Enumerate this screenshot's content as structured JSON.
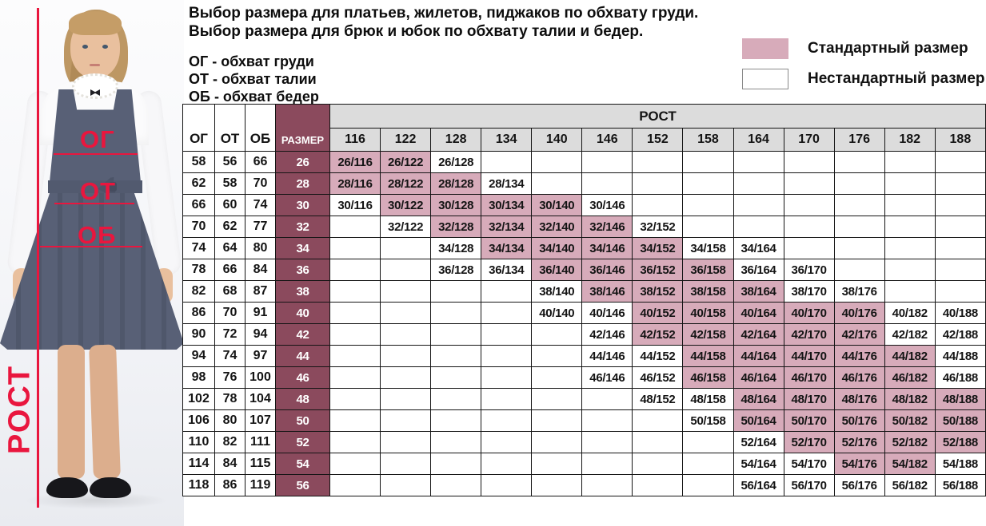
{
  "header": {
    "title_line1": "Выбор размера для платьев, жилетов, пиджаков по обхвату груди.",
    "title_line2": "Выбор размера для брюк и юбок по обхвату талии и бедер.",
    "abbreviations": [
      "ОГ - обхват груди",
      "ОТ - обхват талии",
      "ОБ - обхват бедер"
    ]
  },
  "legend": {
    "standard_label": "Стандартный размер",
    "nonstandard_label": "Нестандартный размер"
  },
  "photo": {
    "chest_label": "ОГ",
    "waist_label": "ОТ",
    "hips_label": "ОБ",
    "height_label": "РОСТ"
  },
  "colors": {
    "accent": "#e9163e",
    "pink": "#d7abba",
    "maroon": "#8b4a5d",
    "gray": "#dcdcdc"
  },
  "table": {
    "col_chest": "ОГ",
    "col_waist": "ОТ",
    "col_hips": "ОБ",
    "col_size": "РАЗМЕР",
    "col_height_group": "РОСТ",
    "heights": [
      "116",
      "122",
      "128",
      "134",
      "140",
      "146",
      "152",
      "158",
      "164",
      "170",
      "176",
      "182",
      "188"
    ],
    "rows": [
      {
        "og": "58",
        "ot": "56",
        "ob": "66",
        "size": "26",
        "cells": [
          {
            "t": "26/116",
            "s": 1
          },
          {
            "t": "26/122",
            "s": 1
          },
          {
            "t": "26/128",
            "s": 0
          },
          null,
          null,
          null,
          null,
          null,
          null,
          null,
          null,
          null,
          null
        ]
      },
      {
        "og": "62",
        "ot": "58",
        "ob": "70",
        "size": "28",
        "cells": [
          {
            "t": "28/116",
            "s": 1
          },
          {
            "t": "28/122",
            "s": 1
          },
          {
            "t": "28/128",
            "s": 1
          },
          {
            "t": "28/134",
            "s": 0
          },
          null,
          null,
          null,
          null,
          null,
          null,
          null,
          null,
          null
        ]
      },
      {
        "og": "66",
        "ot": "60",
        "ob": "74",
        "size": "30",
        "cells": [
          {
            "t": "30/116",
            "s": 0
          },
          {
            "t": "30/122",
            "s": 1
          },
          {
            "t": "30/128",
            "s": 1
          },
          {
            "t": "30/134",
            "s": 1
          },
          {
            "t": "30/140",
            "s": 1
          },
          {
            "t": "30/146",
            "s": 0
          },
          null,
          null,
          null,
          null,
          null,
          null,
          null
        ]
      },
      {
        "og": "70",
        "ot": "62",
        "ob": "77",
        "size": "32",
        "cells": [
          null,
          {
            "t": "32/122",
            "s": 0
          },
          {
            "t": "32/128",
            "s": 1
          },
          {
            "t": "32/134",
            "s": 1
          },
          {
            "t": "32/140",
            "s": 1
          },
          {
            "t": "32/146",
            "s": 1
          },
          {
            "t": "32/152",
            "s": 0
          },
          null,
          null,
          null,
          null,
          null,
          null
        ]
      },
      {
        "og": "74",
        "ot": "64",
        "ob": "80",
        "size": "34",
        "cells": [
          null,
          null,
          {
            "t": "34/128",
            "s": 0
          },
          {
            "t": "34/134",
            "s": 1
          },
          {
            "t": "34/140",
            "s": 1
          },
          {
            "t": "34/146",
            "s": 1
          },
          {
            "t": "34/152",
            "s": 1
          },
          {
            "t": "34/158",
            "s": 0
          },
          {
            "t": "34/164",
            "s": 0
          },
          null,
          null,
          null,
          null
        ]
      },
      {
        "og": "78",
        "ot": "66",
        "ob": "84",
        "size": "36",
        "cells": [
          null,
          null,
          {
            "t": "36/128",
            "s": 0
          },
          {
            "t": "36/134",
            "s": 0
          },
          {
            "t": "36/140",
            "s": 1
          },
          {
            "t": "36/146",
            "s": 1
          },
          {
            "t": "36/152",
            "s": 1
          },
          {
            "t": "36/158",
            "s": 1
          },
          {
            "t": "36/164",
            "s": 0
          },
          {
            "t": "36/170",
            "s": 0
          },
          null,
          null,
          null
        ]
      },
      {
        "og": "82",
        "ot": "68",
        "ob": "87",
        "size": "38",
        "cells": [
          null,
          null,
          null,
          null,
          {
            "t": "38/140",
            "s": 0
          },
          {
            "t": "38/146",
            "s": 1
          },
          {
            "t": "38/152",
            "s": 1
          },
          {
            "t": "38/158",
            "s": 1
          },
          {
            "t": "38/164",
            "s": 1
          },
          {
            "t": "38/170",
            "s": 0
          },
          {
            "t": "38/176",
            "s": 0
          },
          null,
          null
        ]
      },
      {
        "og": "86",
        "ot": "70",
        "ob": "91",
        "size": "40",
        "cells": [
          null,
          null,
          null,
          null,
          {
            "t": "40/140",
            "s": 0
          },
          {
            "t": "40/146",
            "s": 0
          },
          {
            "t": "40/152",
            "s": 1
          },
          {
            "t": "40/158",
            "s": 1
          },
          {
            "t": "40/164",
            "s": 1
          },
          {
            "t": "40/170",
            "s": 1
          },
          {
            "t": "40/176",
            "s": 1
          },
          {
            "t": "40/182",
            "s": 0
          },
          {
            "t": "40/188",
            "s": 0
          }
        ]
      },
      {
        "og": "90",
        "ot": "72",
        "ob": "94",
        "size": "42",
        "cells": [
          null,
          null,
          null,
          null,
          null,
          {
            "t": "42/146",
            "s": 0
          },
          {
            "t": "42/152",
            "s": 1
          },
          {
            "t": "42/158",
            "s": 1
          },
          {
            "t": "42/164",
            "s": 1
          },
          {
            "t": "42/170",
            "s": 1
          },
          {
            "t": "42/176",
            "s": 1
          },
          {
            "t": "42/182",
            "s": 0
          },
          {
            "t": "42/188",
            "s": 0
          }
        ]
      },
      {
        "og": "94",
        "ot": "74",
        "ob": "97",
        "size": "44",
        "cells": [
          null,
          null,
          null,
          null,
          null,
          {
            "t": "44/146",
            "s": 0
          },
          {
            "t": "44/152",
            "s": 0
          },
          {
            "t": "44/158",
            "s": 1
          },
          {
            "t": "44/164",
            "s": 1
          },
          {
            "t": "44/170",
            "s": 1
          },
          {
            "t": "44/176",
            "s": 1
          },
          {
            "t": "44/182",
            "s": 1
          },
          {
            "t": "44/188",
            "s": 0
          }
        ]
      },
      {
        "og": "98",
        "ot": "76",
        "ob": "100",
        "size": "46",
        "cells": [
          null,
          null,
          null,
          null,
          null,
          {
            "t": "46/146",
            "s": 0
          },
          {
            "t": "46/152",
            "s": 0
          },
          {
            "t": "46/158",
            "s": 1
          },
          {
            "t": "46/164",
            "s": 1
          },
          {
            "t": "46/170",
            "s": 1
          },
          {
            "t": "46/176",
            "s": 1
          },
          {
            "t": "46/182",
            "s": 1
          },
          {
            "t": "46/188",
            "s": 0
          }
        ]
      },
      {
        "og": "102",
        "ot": "78",
        "ob": "104",
        "size": "48",
        "cells": [
          null,
          null,
          null,
          null,
          null,
          null,
          {
            "t": "48/152",
            "s": 0
          },
          {
            "t": "48/158",
            "s": 0
          },
          {
            "t": "48/164",
            "s": 1
          },
          {
            "t": "48/170",
            "s": 1
          },
          {
            "t": "48/176",
            "s": 1
          },
          {
            "t": "48/182",
            "s": 1
          },
          {
            "t": "48/188",
            "s": 1
          }
        ]
      },
      {
        "og": "106",
        "ot": "80",
        "ob": "107",
        "size": "50",
        "cells": [
          null,
          null,
          null,
          null,
          null,
          null,
          null,
          {
            "t": "50/158",
            "s": 0
          },
          {
            "t": "50/164",
            "s": 1
          },
          {
            "t": "50/170",
            "s": 1
          },
          {
            "t": "50/176",
            "s": 1
          },
          {
            "t": "50/182",
            "s": 1
          },
          {
            "t": "50/188",
            "s": 1
          }
        ]
      },
      {
        "og": "110",
        "ot": "82",
        "ob": "111",
        "size": "52",
        "cells": [
          null,
          null,
          null,
          null,
          null,
          null,
          null,
          null,
          {
            "t": "52/164",
            "s": 0
          },
          {
            "t": "52/170",
            "s": 1
          },
          {
            "t": "52/176",
            "s": 1
          },
          {
            "t": "52/182",
            "s": 1
          },
          {
            "t": "52/188",
            "s": 1
          }
        ]
      },
      {
        "og": "114",
        "ot": "84",
        "ob": "115",
        "size": "54",
        "cells": [
          null,
          null,
          null,
          null,
          null,
          null,
          null,
          null,
          {
            "t": "54/164",
            "s": 0
          },
          {
            "t": "54/170",
            "s": 0
          },
          {
            "t": "54/176",
            "s": 1
          },
          {
            "t": "54/182",
            "s": 1
          },
          {
            "t": "54/188",
            "s": 0
          }
        ]
      },
      {
        "og": "118",
        "ot": "86",
        "ob": "119",
        "size": "56",
        "cells": [
          null,
          null,
          null,
          null,
          null,
          null,
          null,
          null,
          {
            "t": "56/164",
            "s": 0
          },
          {
            "t": "56/170",
            "s": 0
          },
          {
            "t": "56/176",
            "s": 0
          },
          {
            "t": "56/182",
            "s": 0
          },
          {
            "t": "56/188",
            "s": 0
          }
        ]
      }
    ]
  }
}
